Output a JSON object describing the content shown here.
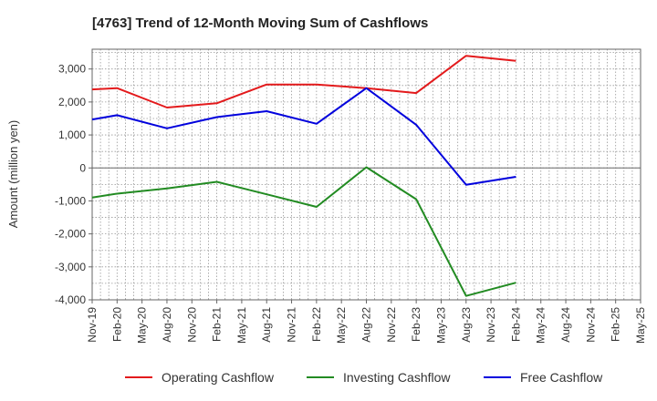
{
  "chart_data": {
    "type": "line",
    "title": "[4763]  Trend of 12-Month Moving Sum of Cashflows",
    "xlabel": "",
    "ylabel": "Amount (million yen)",
    "ylim": [
      -4000,
      3600
    ],
    "yticks": [
      3000,
      2000,
      1000,
      0,
      -1000,
      -2000,
      -3000,
      -4000
    ],
    "ytick_labels": [
      "3,000",
      "2,000",
      "1,000",
      "0",
      "-1,000",
      "-2,000",
      "-3,000",
      "-4,000"
    ],
    "x": [
      "Nov-19",
      "Feb-20",
      "May-20",
      "Aug-20",
      "Nov-20",
      "Feb-21",
      "May-21",
      "Aug-21",
      "Nov-21",
      "Feb-22",
      "May-22",
      "Aug-22",
      "Nov-22",
      "Feb-23",
      "May-23",
      "Aug-23",
      "Nov-23",
      "Feb-24",
      "May-24",
      "Aug-24",
      "Nov-24",
      "Feb-25",
      "May-25"
    ],
    "grid": true,
    "legend_position": "bottom",
    "series": [
      {
        "name": "Operating Cashflow",
        "color": "#e31a1c",
        "values": [
          2380,
          2420,
          null,
          1830,
          null,
          1960,
          null,
          2530,
          null,
          2530,
          null,
          2420,
          null,
          2270,
          null,
          3400,
          null,
          3250,
          null,
          null,
          null,
          null,
          null
        ]
      },
      {
        "name": "Investing Cashflow",
        "color": "#228b22",
        "values": [
          -900,
          -780,
          null,
          -620,
          null,
          -420,
          null,
          -800,
          null,
          -1180,
          null,
          20,
          null,
          -950,
          null,
          -3880,
          null,
          -3480,
          null,
          null,
          null,
          null,
          null
        ]
      },
      {
        "name": "Free Cashflow",
        "color": "#0000dd",
        "values": [
          1470,
          1600,
          null,
          1200,
          null,
          1540,
          null,
          1720,
          null,
          1340,
          null,
          2420,
          null,
          1310,
          null,
          -510,
          null,
          -270,
          null,
          null,
          null,
          null,
          null
        ]
      }
    ]
  }
}
